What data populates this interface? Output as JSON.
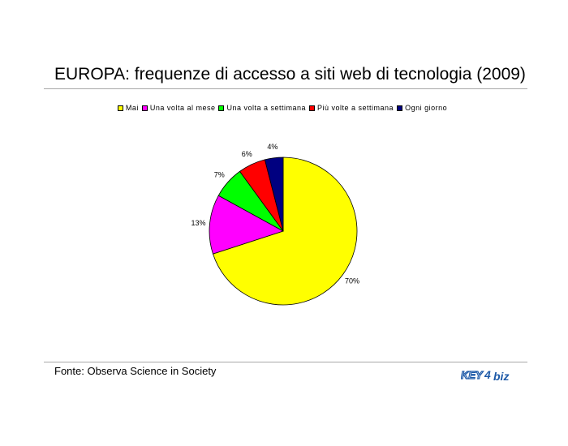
{
  "title": "EUROPA: frequenze di accesso a siti web di tecnologia (2009)",
  "source": "Fonte: Observa Science in Society",
  "logo": {
    "text_a": "KEY",
    "text_b": "4",
    "text_c": "biz",
    "color": "#1e5aa8"
  },
  "chart_data": {
    "type": "pie",
    "title": "",
    "legend_position": "top",
    "categories": [
      "Mai",
      "Una volta al mese",
      "Una volta a settimana",
      "Più volte a settimana",
      "Ogni giorno"
    ],
    "values": [
      70,
      13,
      7,
      6,
      4
    ],
    "labels": [
      "70%",
      "13%",
      "7%",
      "6%",
      "4%"
    ],
    "colors": [
      "#ffff00",
      "#ff00ff",
      "#00ff00",
      "#ff0000",
      "#000080"
    ]
  }
}
